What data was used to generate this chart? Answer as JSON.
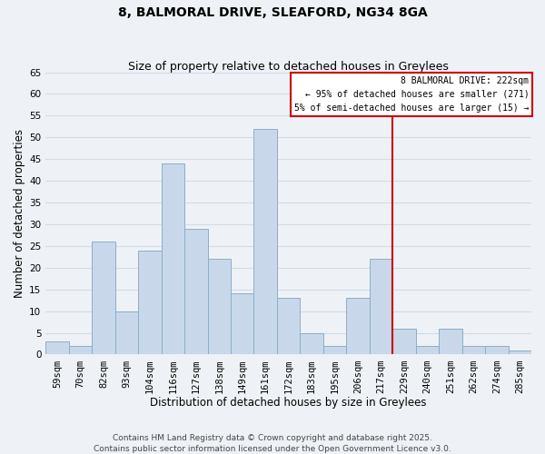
{
  "title": "8, BALMORAL DRIVE, SLEAFORD, NG34 8GA",
  "subtitle": "Size of property relative to detached houses in Greylees",
  "xlabel": "Distribution of detached houses by size in Greylees",
  "ylabel": "Number of detached properties",
  "bin_labels": [
    "59sqm",
    "70sqm",
    "82sqm",
    "93sqm",
    "104sqm",
    "116sqm",
    "127sqm",
    "138sqm",
    "149sqm",
    "161sqm",
    "172sqm",
    "183sqm",
    "195sqm",
    "206sqm",
    "217sqm",
    "229sqm",
    "240sqm",
    "251sqm",
    "262sqm",
    "274sqm",
    "285sqm"
  ],
  "bar_heights": [
    3,
    2,
    26,
    10,
    24,
    44,
    29,
    22,
    14,
    52,
    13,
    5,
    2,
    13,
    22,
    6,
    2,
    6,
    2,
    2,
    1
  ],
  "bar_color": "#c8d8ea",
  "bar_edge_color": "#8aafc8",
  "vline_color": "#cc0000",
  "ylim": [
    0,
    65
  ],
  "yticks": [
    0,
    5,
    10,
    15,
    20,
    25,
    30,
    35,
    40,
    45,
    50,
    55,
    60,
    65
  ],
  "grid_color": "#d0dce8",
  "background_color": "#eef2f6",
  "legend_title": "8 BALMORAL DRIVE: 222sqm",
  "legend_line1": "← 95% of detached houses are smaller (271)",
  "legend_line2": "5% of semi-detached houses are larger (15) →",
  "legend_box_color": "#cc0000",
  "footnote1": "Contains HM Land Registry data © Crown copyright and database right 2025.",
  "footnote2": "Contains public sector information licensed under the Open Government Licence v3.0.",
  "title_fontsize": 10,
  "subtitle_fontsize": 9,
  "axis_label_fontsize": 8.5,
  "tick_fontsize": 7.5,
  "legend_fontsize": 7,
  "footnote_fontsize": 6.5,
  "vline_pos": 14.5
}
